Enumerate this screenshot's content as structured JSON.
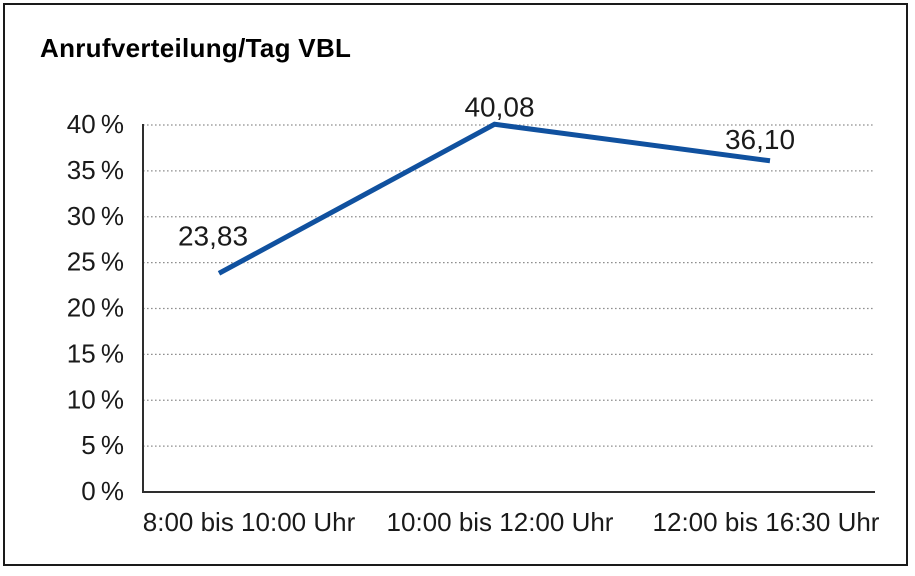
{
  "chart": {
    "title": "Anrufverteilung/Tag VBL"
  },
  "chart_data": {
    "type": "line",
    "title": "Anrufverteilung/Tag VBL",
    "categories": [
      "8:00 bis 10:00 Uhr",
      "10:00 bis 12:00 Uhr",
      "12:00 bis 16:30 Uhr"
    ],
    "values": [
      23.83,
      40.08,
      36.1
    ],
    "point_labels": [
      "23,83",
      "40,08",
      "36,10"
    ],
    "xlabel": "",
    "ylabel": "",
    "ylim": [
      0,
      40
    ],
    "ytick_values": [
      0,
      5,
      10,
      15,
      20,
      25,
      30,
      35,
      40
    ],
    "ytick_labels": [
      "0 %",
      "5 %",
      "10 %",
      "15 %",
      "20 %",
      "25 %",
      "30 %",
      "35 %",
      "40 %"
    ],
    "grid": "horizontal-dotted",
    "legend": "none",
    "line_color": "#10519F",
    "axis_color": "#2e2e2e",
    "grid_color": "#8f8f8f",
    "text_color": "#1a1a1a",
    "background": "#ffffff",
    "border_color": "#1a1a1a"
  }
}
